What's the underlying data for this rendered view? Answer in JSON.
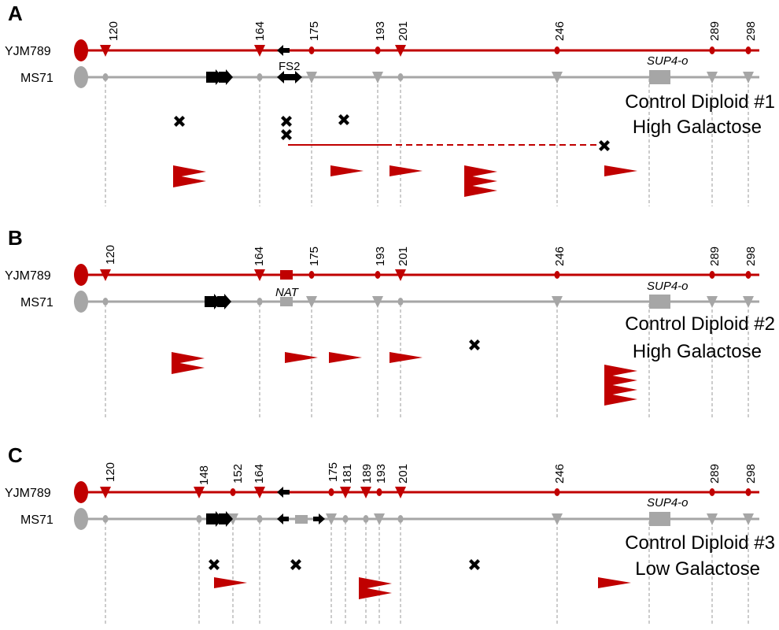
{
  "colors": {
    "red": "#c00000",
    "gray": "#a6a6a6",
    "black": "#000000",
    "guide": "#9a9a9a"
  },
  "strains": {
    "top": "YJM789",
    "bottom": "MS71"
  },
  "panels": [
    {
      "letter": "A",
      "condition": [
        "Control Diploid #1",
        "High Galactose"
      ],
      "positions": [
        "120",
        "164",
        "175",
        "193",
        "201",
        "246",
        "289",
        "298"
      ],
      "top_markers": [
        {
          "pos": "120",
          "type": "triangle"
        },
        {
          "pos": "164",
          "type": "triangle"
        },
        {
          "pos": "175",
          "type": "dot"
        },
        {
          "pos": "193",
          "type": "dot"
        },
        {
          "pos": "201",
          "type": "triangle"
        },
        {
          "pos": "246",
          "type": "dot"
        },
        {
          "pos": "289",
          "type": "dot"
        },
        {
          "pos": "298",
          "type": "dot"
        }
      ],
      "bottom_markers": [
        {
          "pos": "120",
          "type": "dot"
        },
        {
          "pos": "164",
          "type": "dot"
        },
        {
          "pos": "175",
          "type": "triangle"
        },
        {
          "pos": "193",
          "type": "triangle"
        },
        {
          "pos": "201",
          "type": "dot"
        },
        {
          "pos": "246",
          "type": "triangle"
        },
        {
          "pos": "289",
          "type": "triangle"
        },
        {
          "pos": "298",
          "type": "triangle"
        }
      ],
      "insert_label": "FS2",
      "sup_label": "SUP4-o",
      "crossovers": 5,
      "red_flag_groups": [
        2,
        1,
        1,
        3,
        1
      ]
    },
    {
      "letter": "B",
      "condition": [
        "Control Diploid #2",
        "High Galactose"
      ],
      "positions": [
        "120",
        "164",
        "175",
        "193",
        "201",
        "246",
        "289",
        "298"
      ],
      "top_markers": [
        {
          "pos": "120",
          "type": "triangle"
        },
        {
          "pos": "164",
          "type": "triangle"
        },
        {
          "pos": "175",
          "type": "dot"
        },
        {
          "pos": "193",
          "type": "dot"
        },
        {
          "pos": "201",
          "type": "triangle"
        },
        {
          "pos": "246",
          "type": "dot"
        },
        {
          "pos": "289",
          "type": "dot"
        },
        {
          "pos": "298",
          "type": "dot"
        }
      ],
      "bottom_markers": [
        {
          "pos": "120",
          "type": "dot"
        },
        {
          "pos": "164",
          "type": "dot"
        },
        {
          "pos": "175",
          "type": "triangle"
        },
        {
          "pos": "193",
          "type": "triangle"
        },
        {
          "pos": "201",
          "type": "dot"
        },
        {
          "pos": "246",
          "type": "triangle"
        },
        {
          "pos": "289",
          "type": "triangle"
        },
        {
          "pos": "298",
          "type": "triangle"
        }
      ],
      "insert_label": "NAT",
      "sup_label": "SUP4-o",
      "crossovers": 1,
      "red_flag_groups": [
        2,
        1,
        1,
        1,
        4
      ]
    },
    {
      "letter": "C",
      "condition": [
        "Control Diploid #3",
        "Low Galactose"
      ],
      "positions": [
        "120",
        "148",
        "152",
        "164",
        "175",
        "181",
        "189",
        "193",
        "201",
        "246",
        "289",
        "298"
      ],
      "top_markers": [
        {
          "pos": "120",
          "type": "triangle"
        },
        {
          "pos": "148",
          "type": "triangle"
        },
        {
          "pos": "152",
          "type": "dot"
        },
        {
          "pos": "164",
          "type": "triangle"
        },
        {
          "pos": "175",
          "type": "dot"
        },
        {
          "pos": "181",
          "type": "triangle"
        },
        {
          "pos": "189",
          "type": "triangle"
        },
        {
          "pos": "193",
          "type": "dot"
        },
        {
          "pos": "201",
          "type": "triangle"
        },
        {
          "pos": "246",
          "type": "dot"
        },
        {
          "pos": "289",
          "type": "dot"
        },
        {
          "pos": "298",
          "type": "dot"
        }
      ],
      "bottom_markers": [
        {
          "pos": "120",
          "type": "dot"
        },
        {
          "pos": "148",
          "type": "dot"
        },
        {
          "pos": "152",
          "type": "triangle"
        },
        {
          "pos": "164",
          "type": "dot"
        },
        {
          "pos": "175",
          "type": "triangle"
        },
        {
          "pos": "181",
          "type": "dot"
        },
        {
          "pos": "189",
          "type": "dot"
        },
        {
          "pos": "193",
          "type": "triangle"
        },
        {
          "pos": "201",
          "type": "dot"
        },
        {
          "pos": "246",
          "type": "triangle"
        },
        {
          "pos": "289",
          "type": "triangle"
        },
        {
          "pos": "298",
          "type": "triangle"
        }
      ],
      "insert_label": "",
      "sup_label": "SUP4-o",
      "crossovers": 3,
      "red_flag_groups": [
        1,
        2,
        1
      ]
    }
  ]
}
